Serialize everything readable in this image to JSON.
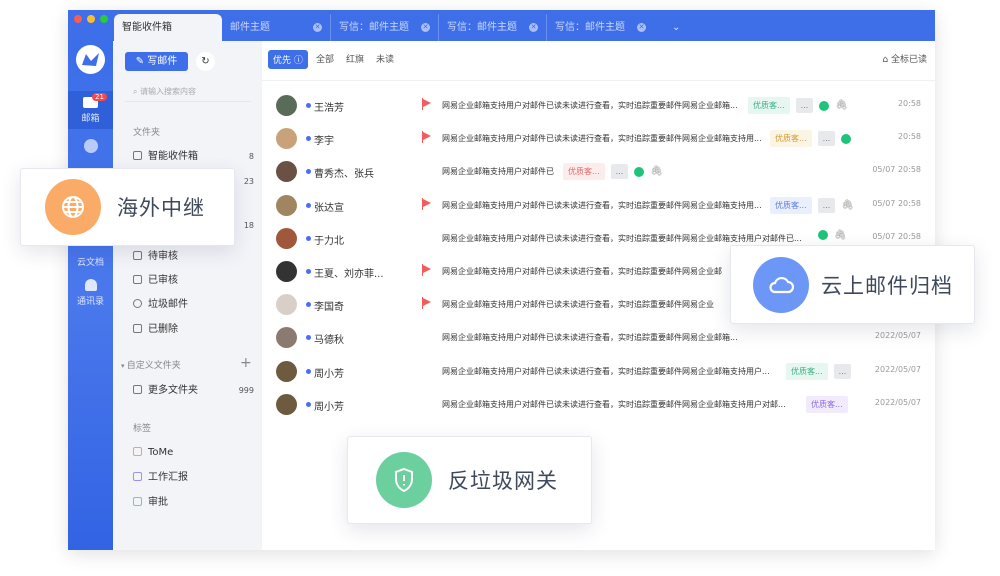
{
  "tabs": [
    {
      "label": "智能收件箱"
    },
    {
      "label": "邮件主题"
    },
    {
      "label": "写信：邮件主题"
    },
    {
      "label": "写信：邮件主题"
    },
    {
      "label": "写信：邮件主题"
    }
  ],
  "rail": {
    "mail": "邮箱",
    "mail_badge": "21",
    "docs": "云文档",
    "contacts": "通讯录"
  },
  "sidebar": {
    "compose": "写邮件",
    "search_placeholder": "请输入搜索内容",
    "folders_title": "文件夹",
    "items": [
      {
        "label": "智能收件箱",
        "count": "8"
      },
      {
        "label": "待审核",
        "count": ""
      },
      {
        "label": "已审核",
        "count": ""
      },
      {
        "label": "垃圾邮件",
        "count": ""
      },
      {
        "label": "已删除",
        "count": ""
      }
    ],
    "hidden_counts": [
      "23",
      "18"
    ],
    "custom_title": "自定义文件夹",
    "custom_items": [
      {
        "label": "更多文件夹",
        "count": "999"
      }
    ],
    "tags_title": "标签",
    "tags": [
      {
        "label": "ToMe",
        "color": "#f2a06b"
      },
      {
        "label": "工作汇报",
        "color": "#a58cf0"
      },
      {
        "label": "审批",
        "color": "#6fd0a8"
      }
    ]
  },
  "filters": {
    "priority": "优先",
    "all": "全部",
    "flag": "红旗",
    "unread": "未读",
    "mark_all": "全标已读"
  },
  "emails": [
    {
      "name": "王浩芳",
      "flag": true,
      "subject": "网易企业邮箱支持用户对邮件已读未读进行查看，实时追踪重要邮件网易企业邮箱...",
      "tag": "优质客...",
      "tagc": "green",
      "more": true,
      "wx": true,
      "clip": true,
      "time": "20:58",
      "avatar": "#5a6b5a"
    },
    {
      "name": "李宇",
      "flag": true,
      "subject": "网易企业邮箱支持用户对邮件已读未读进行查看，实时追踪重要邮件网易企业邮箱支持用...",
      "tag": "优质客...",
      "tagc": "yellow",
      "more": true,
      "wx": true,
      "clip": false,
      "time": "20:58",
      "avatar": "#c9a27a"
    },
    {
      "name": "曹秀杰、张兵",
      "flag": false,
      "subject": "网易企业邮箱支持用户对邮件已",
      "tag": "优质客...",
      "tagc": "red",
      "more": true,
      "wx": true,
      "clip": true,
      "time": "05/07 20:58",
      "avatar": "#6b5044"
    },
    {
      "name": "张达宣",
      "flag": true,
      "subject": "网易企业邮箱支持用户对邮件已读未读进行查看，实时追踪重要邮件网易企业邮箱支持用...",
      "tag": "优质客...",
      "tagc": "blue",
      "more": true,
      "wx": false,
      "clip": true,
      "time": "05/07 20:58",
      "avatar": "#a08660"
    },
    {
      "name": "于力北",
      "flag": false,
      "subject": "网易企业邮箱支持用户对邮件已读未读进行查看，实时追踪重要邮件网易企业邮箱支持用户对邮件已...",
      "tag": "",
      "tagc": "",
      "more": false,
      "wx": true,
      "clip": true,
      "time": "05/07 20:58",
      "avatar": "#a0583c"
    },
    {
      "name": "王夏、刘亦菲...",
      "flag": true,
      "subject": "网易企业邮箱支持用户对邮件已读未读进行查看，实时追踪重要邮件网易企业邮",
      "tag": "",
      "tagc": "",
      "more": false,
      "wx": false,
      "clip": false,
      "time": "",
      "avatar": "#333"
    },
    {
      "name": "李国奇",
      "flag": true,
      "subject": "网易企业邮箱支持用户对邮件已读未读进行查看，实时追踪重要邮件网易企业",
      "tag": "",
      "tagc": "",
      "more": false,
      "wx": false,
      "clip": false,
      "time": "",
      "avatar": "#d8d0c8"
    },
    {
      "name": "马德秋",
      "flag": false,
      "subject": "网易企业邮箱支持用户对邮件已读未读进行查看，实时追踪重要邮件网易企业邮箱...",
      "tag": "",
      "tagc": "",
      "more": false,
      "wx": false,
      "clip": false,
      "time": "2022/05/07",
      "avatar": "#8a7a70"
    },
    {
      "name": "周小芳",
      "flag": false,
      "subject": "网易企业邮箱支持用户对邮件已读未读进行查看，实时追踪重要邮件网易企业邮箱支持用户...",
      "tag": "优质客...",
      "tagc": "green",
      "more": true,
      "wx": false,
      "clip": false,
      "time": "2022/05/07",
      "avatar": "#6e5a3e"
    },
    {
      "name": "周小芳",
      "flag": false,
      "subject": "网易企业邮箱支持用户对邮件已读未读进行查看，实时追踪重要邮件网易企业邮箱支持用户对邮...",
      "tag": "优质客...",
      "tagc": "purple",
      "more": false,
      "wx": false,
      "clip": false,
      "time": "2022/05/07",
      "avatar": "#6e5a3e"
    }
  ],
  "features": [
    {
      "label": "海外中继",
      "icon": "globe-icon",
      "color": "#f9ab67"
    },
    {
      "label": "云上邮件归档",
      "icon": "cloud-icon",
      "color": "#6d97f7"
    },
    {
      "label": "反垃圾网关",
      "icon": "shield-icon",
      "color": "#6ccf9e"
    }
  ],
  "colors": {
    "accent": "#3e6fe8"
  }
}
